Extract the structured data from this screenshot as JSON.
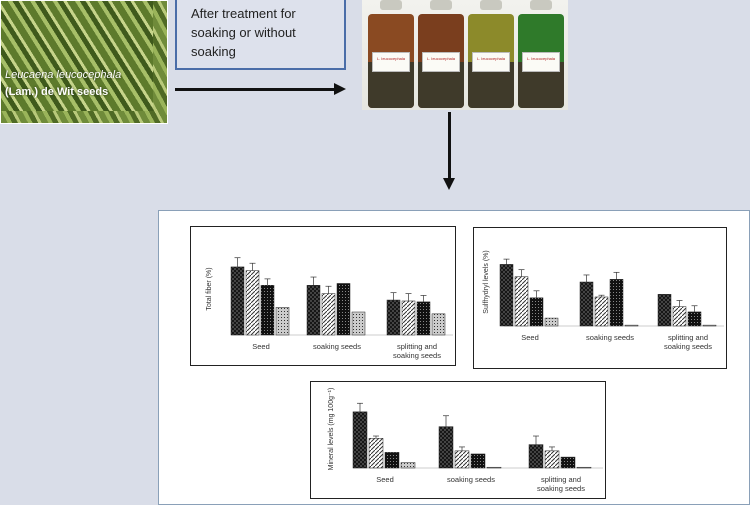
{
  "seed_image": {
    "caption_line1": "Leucaena leucocephala",
    "caption_line2": "(Lam.) de Wit seeds"
  },
  "treatment_box": {
    "line1": "After treatment for",
    "line2": "soaking or without",
    "line3": "soaking"
  },
  "bottles": [
    {
      "label": "L. leucocephala",
      "liquid_color": "#8a4a22"
    },
    {
      "label": "L. leucocephala",
      "liquid_color": "#7a3e1e"
    },
    {
      "label": "L. leucocephala",
      "liquid_color": "#8c8a2a"
    },
    {
      "label": "L. leucocephala",
      "liquid_color": "#2f7a2a"
    }
  ],
  "chart_data": [
    {
      "type": "bar",
      "ylabel": "Total fiber (%)",
      "categories": [
        "Seed",
        "soaking  seeds",
        "splitting and\nsoaking seeds"
      ],
      "series": [
        {
          "values": [
            7.4,
            5.4,
            3.8
          ]
        },
        {
          "values": [
            7.0,
            4.5,
            3.7
          ]
        },
        {
          "values": [
            5.4,
            5.6,
            3.6
          ]
        },
        {
          "values": [
            3.0,
            2.5,
            2.3
          ]
        }
      ],
      "errors": [
        [
          1.0,
          0.9,
          0.8
        ],
        [
          0.8,
          0.8,
          0.8
        ],
        [
          0.7,
          0.0,
          0.7
        ],
        [
          0.0,
          0.0,
          0.0
        ]
      ],
      "ylim": [
        0,
        10
      ]
    },
    {
      "type": "bar",
      "ylabel": "Sulfhydryl levels (%)",
      "categories": [
        "Seed",
        "soaking  seeds",
        "splitting and\nsoaking seeds"
      ],
      "series": [
        {
          "values": [
            7.0,
            5.0,
            3.6
          ]
        },
        {
          "values": [
            5.6,
            3.3,
            2.2
          ]
        },
        {
          "values": [
            3.2,
            5.3,
            1.6
          ]
        },
        {
          "values": [
            0.9,
            0.1,
            0.1
          ]
        }
      ],
      "errors": [
        [
          0.6,
          0.8,
          0.0
        ],
        [
          0.8,
          0.2,
          0.7
        ],
        [
          0.8,
          0.8,
          0.7
        ],
        [
          0.0,
          0.0,
          0.0
        ]
      ],
      "ylim": [
        0,
        10
      ]
    },
    {
      "type": "bar",
      "ylabel": "Mineral levels (mg 100g⁻¹)",
      "categories": [
        "Seed",
        "soaking  seeds",
        "splitting and\nsoaking seeds"
      ],
      "series": [
        {
          "values": [
            7.2,
            5.3,
            3.0
          ]
        },
        {
          "values": [
            3.8,
            2.2,
            2.2
          ]
        },
        {
          "values": [
            2.0,
            1.8,
            1.4
          ]
        },
        {
          "values": [
            0.7,
            0.1,
            0.1
          ]
        }
      ],
      "errors": [
        [
          1.1,
          1.4,
          1.1
        ],
        [
          0.3,
          0.5,
          0.5
        ],
        [
          0.0,
          0.0,
          0.0
        ],
        [
          0.0,
          0.0,
          0.0
        ]
      ],
      "ylim": [
        0,
        10
      ]
    }
  ]
}
